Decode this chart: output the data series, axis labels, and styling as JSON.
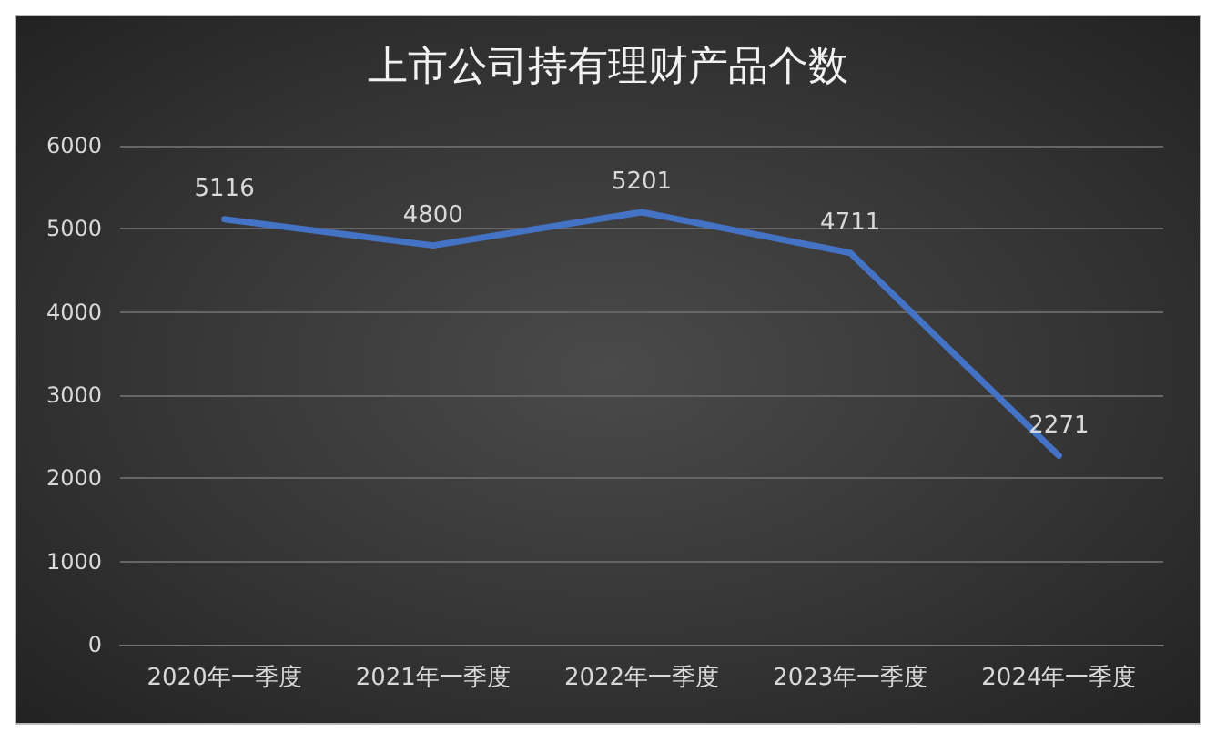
{
  "chart_data": {
    "type": "line",
    "title": "上市公司持有理财产品个数",
    "categories": [
      "2020年一季度",
      "2021年一季度",
      "2022年一季度",
      "2023年一季度",
      "2024年一季度"
    ],
    "series": [
      {
        "color": "#4472c4",
        "values": [
          5116,
          4800,
          5201,
          4711,
          2271
        ]
      }
    ],
    "ylim": [
      0,
      6000
    ],
    "yticks": [
      0,
      1000,
      2000,
      3000,
      4000,
      5000,
      6000
    ],
    "grid": "y",
    "data_labels": true,
    "marker": "none",
    "line_style": "solid"
  }
}
